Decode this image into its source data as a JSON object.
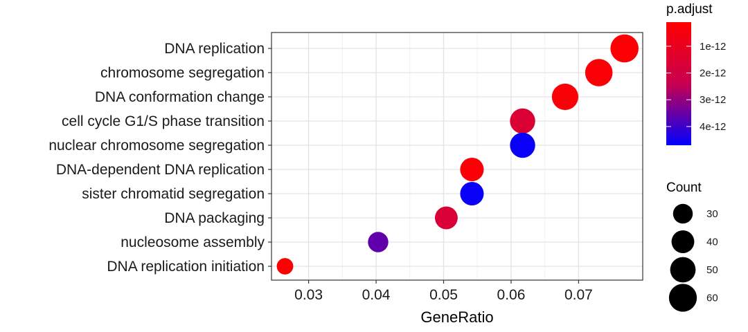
{
  "chart_data": {
    "type": "scatter",
    "xlabel": "GeneRatio",
    "ylabel": "",
    "xlim": [
      0.0245,
      0.0795
    ],
    "xticks": [
      0.03,
      0.04,
      0.05,
      0.06,
      0.07
    ],
    "xtick_labels": [
      "0.03",
      "0.04",
      "0.05",
      "0.06",
      "0.07"
    ],
    "categories": [
      "DNA replication",
      "chromosome segregation",
      "DNA conformation change",
      "cell cycle G1/S phase transition",
      "nuclear chromosome segregation",
      "DNA-dependent DNA replication",
      "sister chromatid segregation",
      "DNA packaging",
      "nucleosome assembly",
      "DNA replication initiation"
    ],
    "points": [
      {
        "category": "DNA replication",
        "gene_ratio": 0.0768,
        "count": 61,
        "p_adjust": 2e-13
      },
      {
        "category": "chromosome segregation",
        "gene_ratio": 0.073,
        "count": 58,
        "p_adjust": 3e-13
      },
      {
        "category": "DNA conformation change",
        "gene_ratio": 0.068,
        "count": 54,
        "p_adjust": 3e-13
      },
      {
        "category": "cell cycle G1/S phase transition",
        "gene_ratio": 0.0617,
        "count": 49,
        "p_adjust": 1.6e-12
      },
      {
        "category": "nuclear chromosome segregation",
        "gene_ratio": 0.0617,
        "count": 49,
        "p_adjust": 4.6e-12
      },
      {
        "category": "DNA-dependent DNA replication",
        "gene_ratio": 0.0542,
        "count": 43,
        "p_adjust": 3e-13
      },
      {
        "category": "sister chromatid segregation",
        "gene_ratio": 0.0542,
        "count": 43,
        "p_adjust": 4.6e-12
      },
      {
        "category": "DNA packaging",
        "gene_ratio": 0.0504,
        "count": 40,
        "p_adjust": 1.7e-12
      },
      {
        "category": "nucleosome assembly",
        "gene_ratio": 0.0403,
        "count": 32,
        "p_adjust": 3.6e-12
      },
      {
        "category": "DNA replication initiation",
        "gene_ratio": 0.0265,
        "count": 21,
        "p_adjust": 2e-13
      }
    ],
    "color_legend": {
      "title": "p.adjust",
      "low_color": "#ff0000",
      "high_color": "#0000ff",
      "range": [
        1e-13,
        4.7e-12
      ],
      "ticks": [
        1e-12,
        2e-12,
        3e-12,
        4e-12
      ],
      "tick_labels": [
        "1e-12",
        "2e-12",
        "3e-12",
        "4e-12"
      ]
    },
    "size_legend": {
      "title": "Count",
      "values": [
        30,
        40,
        50,
        60
      ],
      "labels": [
        "30",
        "40",
        "50",
        "60"
      ]
    },
    "grid": true,
    "legend_placement": "right"
  }
}
